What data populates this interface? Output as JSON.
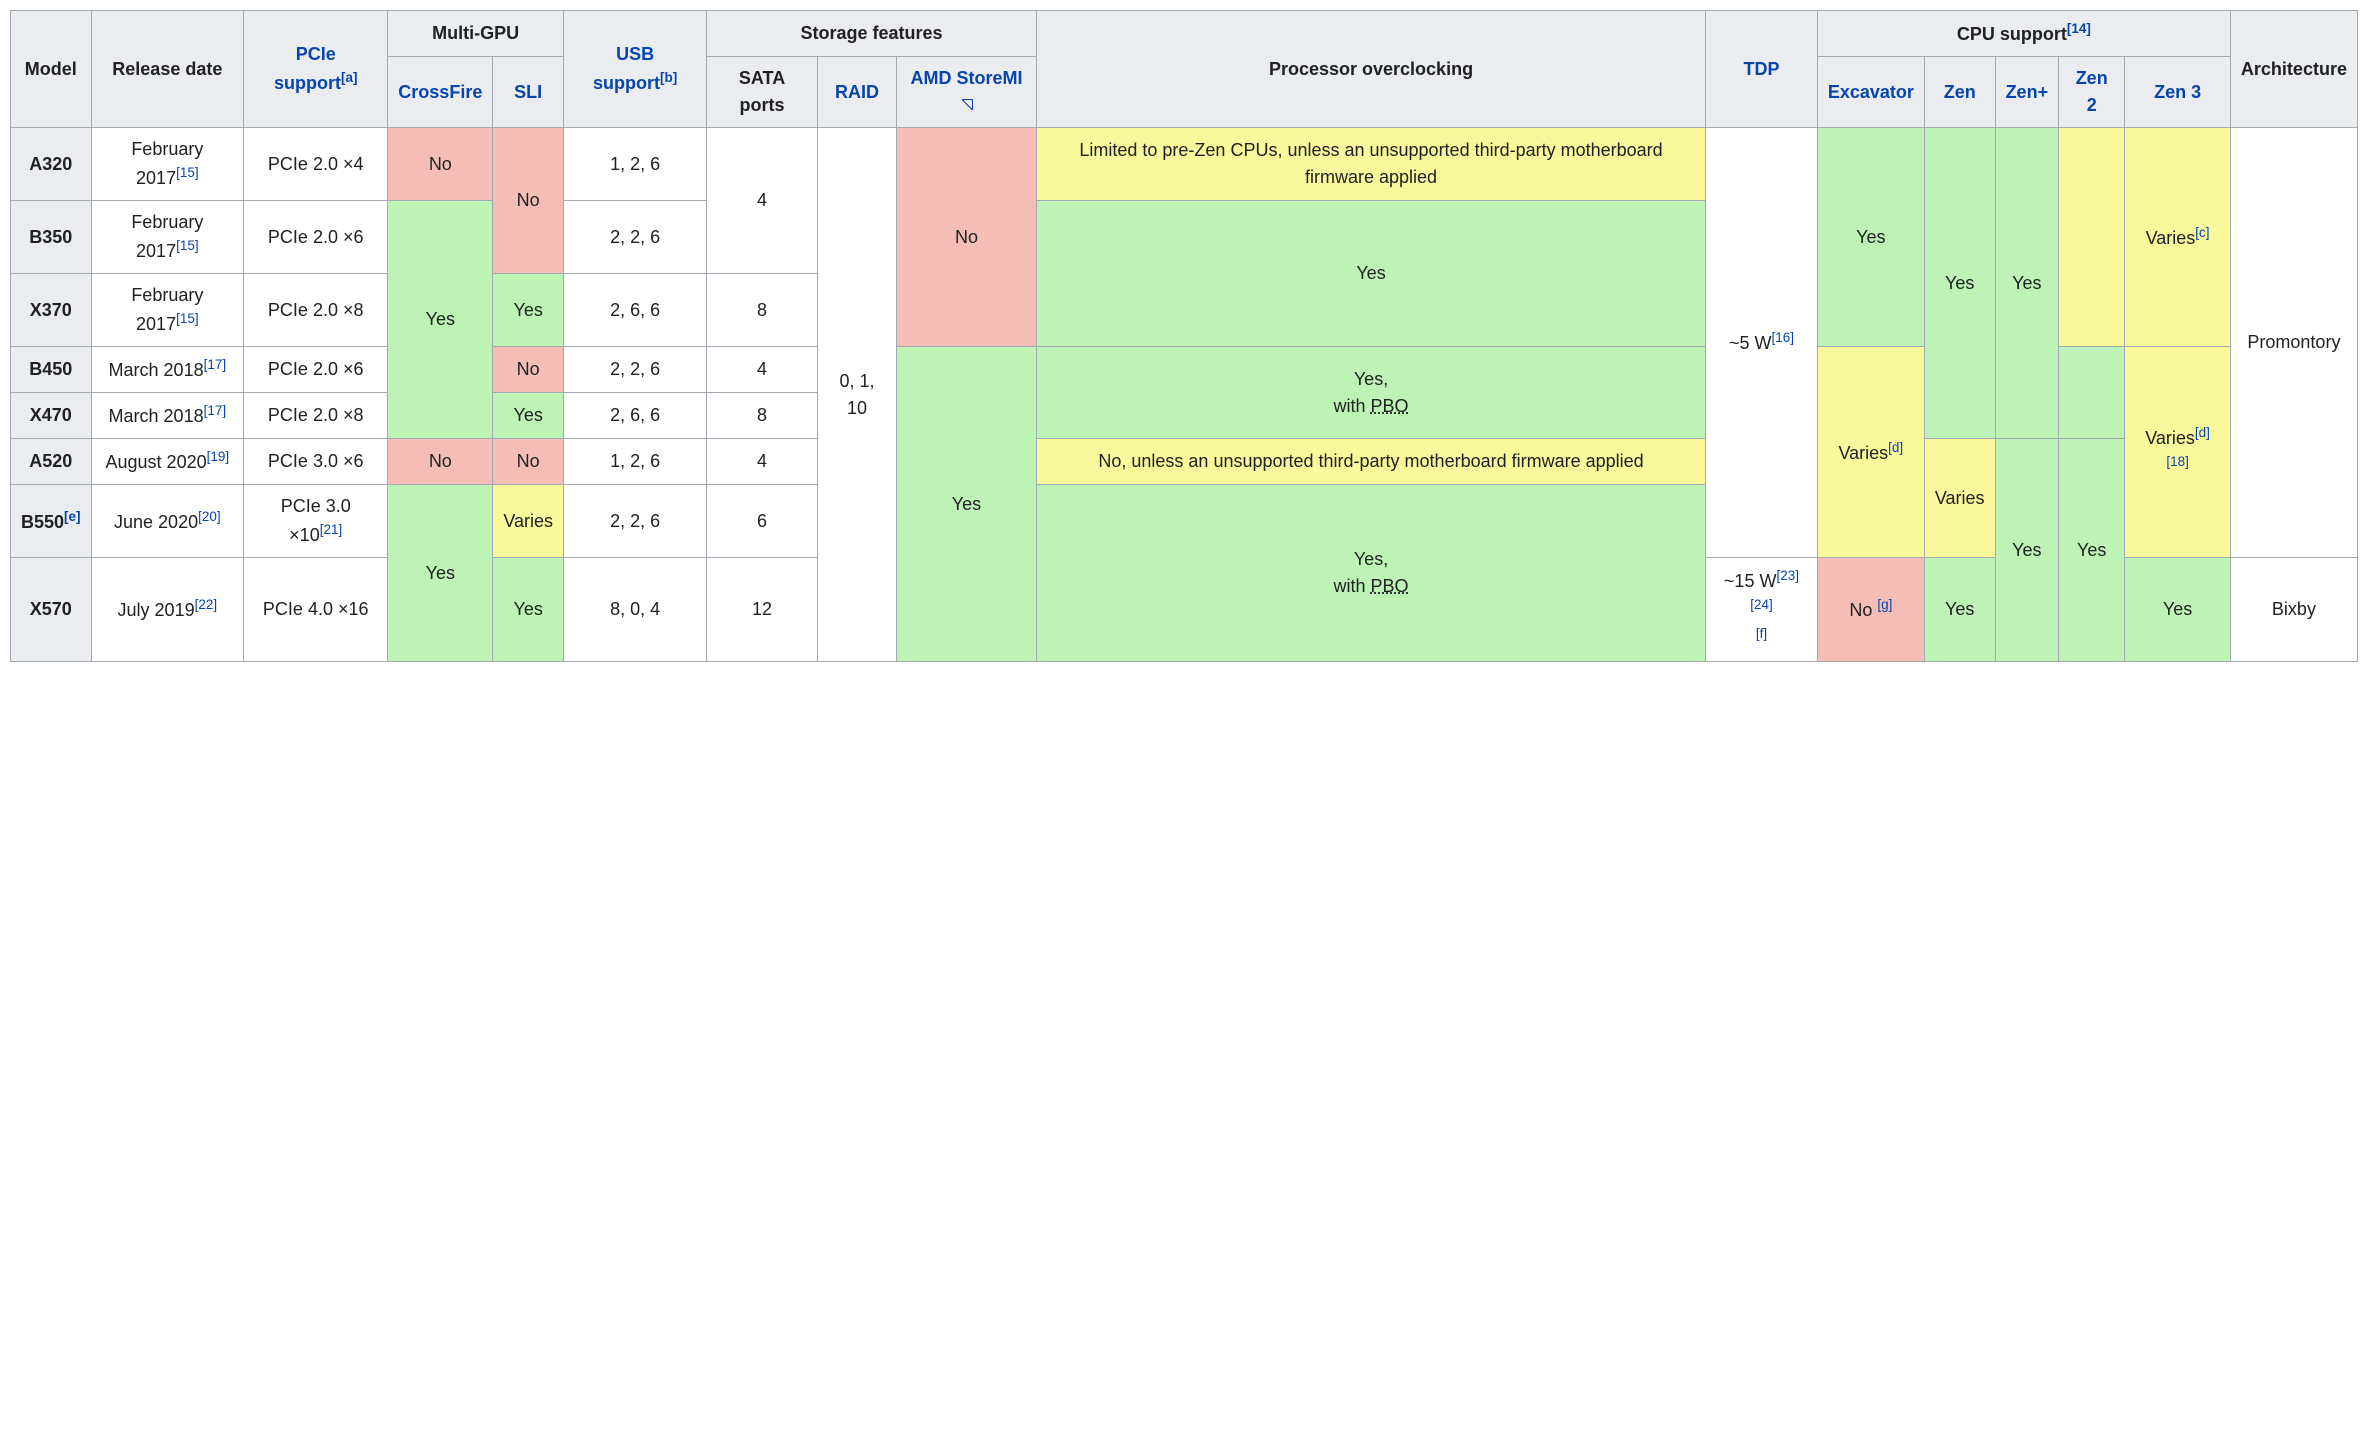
{
  "colors": {
    "header_bg": "#eaecf0",
    "green": "#bdf4b5",
    "red": "#f4bdb5",
    "yellow": "#f9f99c",
    "border": "#a2a9b1",
    "link": "#0645ad",
    "text": "#202122"
  },
  "header": {
    "model": "Model",
    "release": "Release date",
    "pcie": "PCIe support",
    "pcie_note": "[a]",
    "multi_gpu": "Multi-GPU",
    "crossfire": "CrossFire",
    "sli": "SLI",
    "usb": "USB support",
    "usb_note": "[b]",
    "storage": "Storage features",
    "sata": "SATA ports",
    "raid": "RAID",
    "storemi": "AMD StoreMI",
    "overclock": "Processor overclocking",
    "tdp": "TDP",
    "cpu_support": "CPU support",
    "cpu_note": "[14]",
    "excavator": "Excavator",
    "zen": "Zen",
    "zenplus": "Zen+",
    "zen2": "Zen 2",
    "zen3": "Zen 3",
    "arch": "Architecture"
  },
  "rows": {
    "a320": {
      "model": "A320",
      "release": "February 2017",
      "release_note": "[15]",
      "pcie": "PCIe 2.0 ×4",
      "crossfire": "No",
      "sli": "No",
      "usb": "1, 2, 6",
      "sata": "4",
      "storemi": "No",
      "overclock": "Limited to pre-Zen CPUs, unless an unsupported third-party motherboard firmware applied",
      "excavator": "Yes",
      "zen3": "Varies",
      "zen3_note": "[c]"
    },
    "b350": {
      "model": "B350",
      "release": "February 2017",
      "release_note": "[15]",
      "pcie": "PCIe 2.0 ×6",
      "crossfire": "Yes",
      "usb": "2, 2, 6",
      "overclock": "Yes"
    },
    "x370": {
      "model": "X370",
      "release": "February 2017",
      "release_note": "[15]",
      "pcie": "PCIe 2.0 ×8",
      "sli": "Yes",
      "usb": "2, 6, 6",
      "sata": "8",
      "zen": "Yes",
      "zenplus": "Yes"
    },
    "b450": {
      "model": "B450",
      "release": "March 2018",
      "release_note": "[17]",
      "pcie": "PCIe 2.0 ×6",
      "sli": "No",
      "usb": "2, 2, 6",
      "sata": "4",
      "storemi": "Yes",
      "overclock_pre": "Yes,",
      "overclock_post": "with ",
      "overclock_abbr": "PBO",
      "excavator": "Varies",
      "excavator_note": "[d]",
      "zen3": "Varies",
      "zen3_note1": "[d]",
      "zen3_note2": "[18]"
    },
    "x470": {
      "model": "X470",
      "release": "March 2018",
      "release_note": "[17]",
      "pcie": "PCIe 2.0 ×8",
      "sli": "Yes",
      "usb": "2, 6, 6",
      "sata": "8"
    },
    "a520": {
      "model": "A520",
      "release": "August 2020",
      "release_note": "[19]",
      "pcie": "PCIe 3.0 ×6",
      "crossfire": "No",
      "sli": "No",
      "usb": "1, 2, 6",
      "sata": "4",
      "overclock": "No, unless an unsupported third-party motherboard firmware applied",
      "zen": "Varies",
      "zen2": "Yes",
      "zenplus": "Yes"
    },
    "b550": {
      "model": "B550",
      "model_note": "[e]",
      "release": "June 2020",
      "release_note": "[20]",
      "pcie": "PCIe 3.0 ×10",
      "pcie_note": "[21]",
      "crossfire": "Yes",
      "sli": "Varies",
      "usb": "2, 2, 6",
      "sata": "6",
      "overclock_pre": "Yes,",
      "overclock_post": "with ",
      "overclock_abbr": "PBO"
    },
    "x570": {
      "model": "X570",
      "release": "July 2019",
      "release_note": "[22]",
      "pcie": "PCIe 4.0 ×16",
      "sli": "Yes",
      "usb": "8, 0, 4",
      "sata": "12",
      "tdp": "~15 W",
      "tdp_note1": "[23]",
      "tdp_note2": "[24]",
      "tdp_note3": "[f]",
      "excavator": "No ",
      "excavator_note": "[g]",
      "zen": "Yes",
      "zen3": "Yes",
      "arch": "Bixby"
    },
    "shared": {
      "raid": "0, 1, 10",
      "tdp_5w": "~5 W",
      "tdp_5w_note": "[16]",
      "arch_prom": "Promontory"
    }
  }
}
